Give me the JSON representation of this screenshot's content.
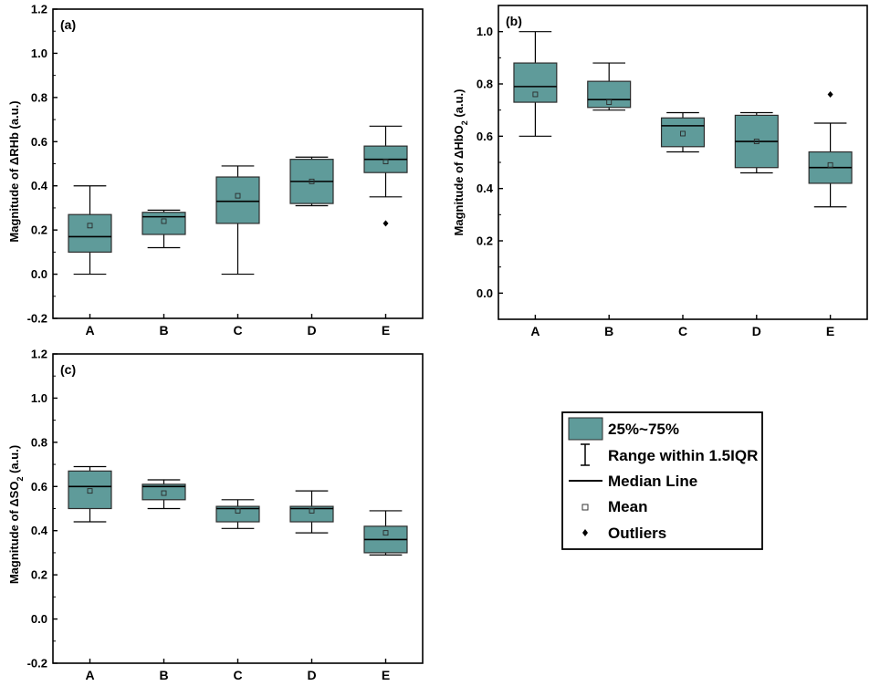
{
  "colors": {
    "box_fill": "#5f9b9a",
    "box_edge": "#2d2d2d",
    "axis": "#000000",
    "outlier": "#000000"
  },
  "legend": {
    "items": [
      {
        "symbol": "box",
        "label": "25%~75%"
      },
      {
        "symbol": "whisker",
        "label": "Range within 1.5IQR"
      },
      {
        "symbol": "median",
        "label": "Median Line"
      },
      {
        "symbol": "mean",
        "label": "Mean"
      },
      {
        "symbol": "outlier",
        "label": "Outliers"
      }
    ]
  },
  "chart_data": [
    {
      "type": "box",
      "panel": "(a)",
      "ylabel_main": "Magnitude of ΔRHb",
      "ylabel_sub": "",
      "ylabel_unit": " (a.u.)",
      "ylim": [
        -0.2,
        1.2
      ],
      "yticks": [
        "-0.2",
        "0.0",
        "0.2",
        "0.4",
        "0.6",
        "0.8",
        "1.0",
        "1.2"
      ],
      "yticks_values": [
        -0.2,
        0.0,
        0.2,
        0.4,
        0.6,
        0.8,
        1.0,
        1.2
      ],
      "categories": [
        "A",
        "B",
        "C",
        "D",
        "E"
      ],
      "boxes": [
        {
          "min": 0.0,
          "q1": 0.1,
          "median": 0.17,
          "q3": 0.27,
          "max": 0.4,
          "mean": 0.22,
          "outliers": []
        },
        {
          "min": 0.12,
          "q1": 0.18,
          "median": 0.26,
          "q3": 0.28,
          "max": 0.29,
          "mean": 0.24,
          "outliers": []
        },
        {
          "min": 0.0,
          "q1": 0.23,
          "median": 0.33,
          "q3": 0.44,
          "max": 0.49,
          "mean": 0.355,
          "outliers": []
        },
        {
          "min": 0.31,
          "q1": 0.32,
          "median": 0.42,
          "q3": 0.52,
          "max": 0.53,
          "mean": 0.42,
          "outliers": []
        },
        {
          "min": 0.35,
          "q1": 0.46,
          "median": 0.52,
          "q3": 0.58,
          "max": 0.67,
          "mean": 0.51,
          "outliers": [
            0.23
          ]
        }
      ]
    },
    {
      "type": "box",
      "panel": "(b)",
      "ylabel_main": "Magnitude of ΔHbO",
      "ylabel_sub": "2",
      "ylabel_unit": " (a.u.)",
      "ylim": [
        -0.1,
        1.1
      ],
      "yticks": [
        "0.0",
        "0.2",
        "0.4",
        "0.6",
        "0.8",
        "1.0"
      ],
      "yticks_values": [
        0.0,
        0.2,
        0.4,
        0.6,
        0.8,
        1.0
      ],
      "categories": [
        "A",
        "B",
        "C",
        "D",
        "E"
      ],
      "boxes": [
        {
          "min": 0.6,
          "q1": 0.73,
          "median": 0.79,
          "q3": 0.88,
          "max": 1.0,
          "mean": 0.76,
          "outliers": []
        },
        {
          "min": 0.7,
          "q1": 0.71,
          "median": 0.74,
          "q3": 0.81,
          "max": 0.88,
          "mean": 0.73,
          "outliers": []
        },
        {
          "min": 0.54,
          "q1": 0.56,
          "median": 0.64,
          "q3": 0.67,
          "max": 0.69,
          "mean": 0.61,
          "outliers": []
        },
        {
          "min": 0.46,
          "q1": 0.48,
          "median": 0.58,
          "q3": 0.68,
          "max": 0.69,
          "mean": 0.58,
          "outliers": []
        },
        {
          "min": 0.33,
          "q1": 0.42,
          "median": 0.48,
          "q3": 0.54,
          "max": 0.65,
          "mean": 0.49,
          "outliers": [
            0.76
          ]
        }
      ]
    },
    {
      "type": "box",
      "panel": "(c)",
      "ylabel_main": "Magnitude of ΔSO",
      "ylabel_sub": "2",
      "ylabel_unit": " (a.u.)",
      "ylim": [
        -0.2,
        1.2
      ],
      "yticks": [
        "-0.2",
        "0.0",
        "0.2",
        "0.4",
        "0.6",
        "0.8",
        "1.0",
        "1.2"
      ],
      "yticks_values": [
        -0.2,
        0.0,
        0.2,
        0.4,
        0.6,
        0.8,
        1.0,
        1.2
      ],
      "categories": [
        "A",
        "B",
        "C",
        "D",
        "E"
      ],
      "boxes": [
        {
          "min": 0.44,
          "q1": 0.5,
          "median": 0.6,
          "q3": 0.67,
          "max": 0.69,
          "mean": 0.58,
          "outliers": []
        },
        {
          "min": 0.5,
          "q1": 0.54,
          "median": 0.6,
          "q3": 0.61,
          "max": 0.63,
          "mean": 0.57,
          "outliers": []
        },
        {
          "min": 0.41,
          "q1": 0.44,
          "median": 0.5,
          "q3": 0.51,
          "max": 0.54,
          "mean": 0.49,
          "outliers": []
        },
        {
          "min": 0.39,
          "q1": 0.44,
          "median": 0.5,
          "q3": 0.51,
          "max": 0.58,
          "mean": 0.49,
          "outliers": []
        },
        {
          "min": 0.29,
          "q1": 0.3,
          "median": 0.36,
          "q3": 0.42,
          "max": 0.49,
          "mean": 0.39,
          "outliers": []
        }
      ]
    }
  ]
}
